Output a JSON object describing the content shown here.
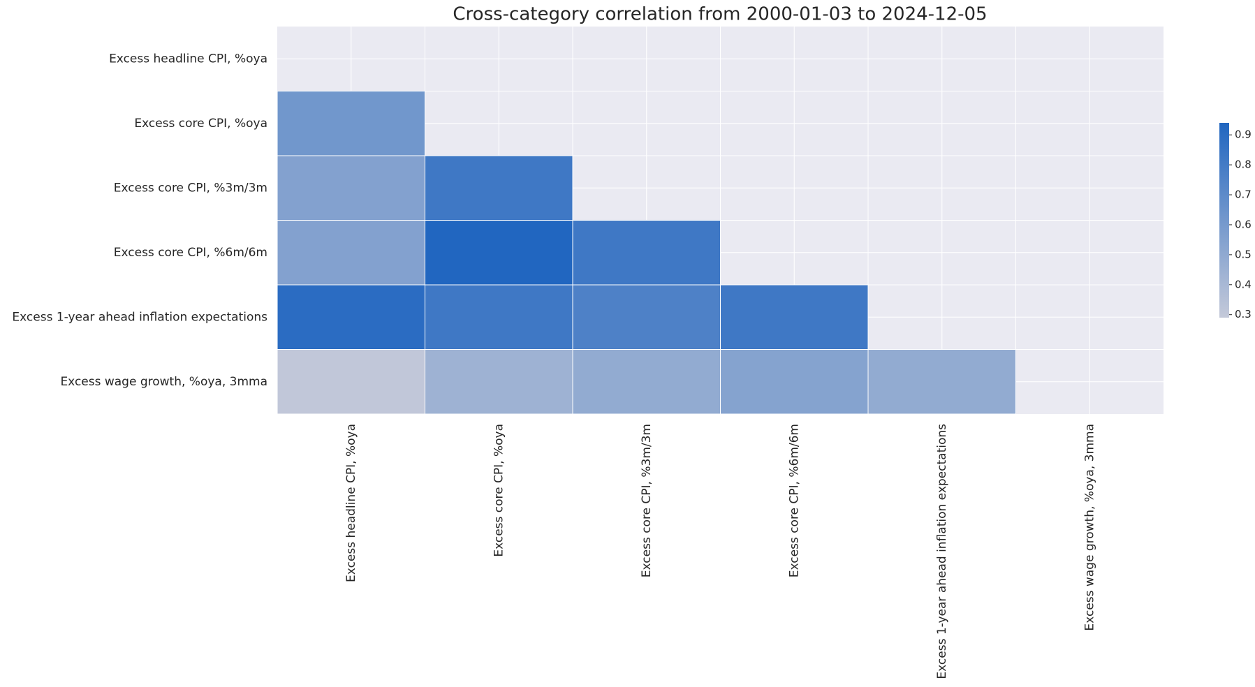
{
  "chart_data": {
    "type": "heatmap",
    "title": "Cross-category correlation from 2000-01-03 to 2024-12-05",
    "rows": [
      "Excess headline CPI, %oya",
      "Excess core CPI, %oya",
      "Excess core CPI, %3m/3m",
      "Excess core CPI, %6m/6m",
      "Excess 1-year ahead inflation expectations",
      "Excess wage growth, %oya, 3mma"
    ],
    "columns": [
      "Excess headline CPI, %oya",
      "Excess core CPI, %oya",
      "Excess core CPI, %3m/3m",
      "Excess core CPI, %6m/6m",
      "Excess 1-year ahead inflation expectations",
      "Excess wage growth, %oya, 3mma"
    ],
    "values": [
      [
        null,
        null,
        null,
        null,
        null,
        null
      ],
      [
        0.62,
        null,
        null,
        null,
        null,
        null
      ],
      [
        0.55,
        0.82,
        null,
        null,
        null,
        null
      ],
      [
        0.55,
        0.94,
        0.82,
        null,
        null,
        null
      ],
      [
        0.9,
        0.82,
        0.76,
        0.82,
        null,
        null
      ],
      [
        0.3,
        0.44,
        0.49,
        0.54,
        0.49,
        null
      ]
    ],
    "colormap": [
      "#c4c9d9",
      "#2166c0"
    ],
    "clim": [
      0.29,
      0.94
    ],
    "colorbar_ticks": [
      0.3,
      0.4,
      0.5,
      0.6,
      0.7,
      0.8,
      0.9
    ],
    "grid": true
  }
}
